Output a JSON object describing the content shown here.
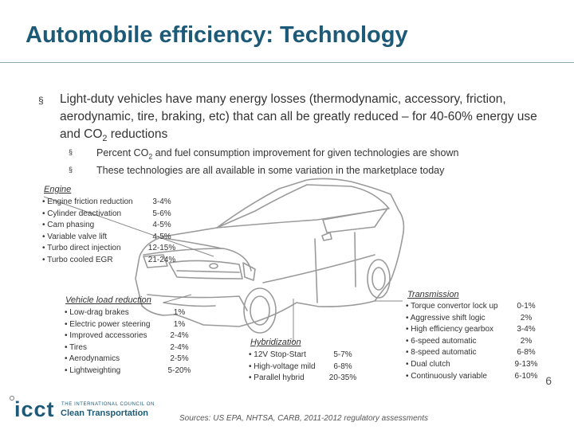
{
  "title": "Automobile efficiency: Technology",
  "bullet_main": {
    "mark": "§",
    "text": "Light-duty vehicles have many energy losses (thermodynamic, accessory, friction, aerodynamic, tire, braking, etc) that can all be greatly reduced – for 40-60% energy use and CO2 reductions"
  },
  "sub_bullets": [
    {
      "mark": "§",
      "text": "Percent CO2 and fuel consumption improvement for given technologies are shown"
    },
    {
      "mark": "§",
      "text": "These technologies are all available in some variation in the marketplace today"
    }
  ],
  "engine": {
    "title": "Engine",
    "items": [
      {
        "label": "• Engine friction reduction",
        "value": "3-4%"
      },
      {
        "label": "• Cylinder deactivation",
        "value": "5-6%"
      },
      {
        "label": "• Cam phasing",
        "value": "4-5%"
      },
      {
        "label": "• Variable valve lift",
        "value": "4-5%"
      },
      {
        "label": "• Turbo direct injection",
        "value": "12-15%"
      },
      {
        "label": "• Turbo cooled EGR",
        "value": "21-24%"
      }
    ]
  },
  "vehicle_load": {
    "title": "Vehicle load reduction",
    "items": [
      {
        "label": "• Low-drag brakes",
        "value": "1%"
      },
      {
        "label": "• Electric power steering",
        "value": "1%"
      },
      {
        "label": "• Improved accessories",
        "value": "2-4%"
      },
      {
        "label": "• Tires",
        "value": "2-4%"
      },
      {
        "label": "• Aerodynamics",
        "value": "2-5%"
      },
      {
        "label": "• Lightweighting",
        "value": "5-20%"
      }
    ]
  },
  "hybridization": {
    "title": "Hybridization",
    "items": [
      {
        "label": "• 12V Stop-Start",
        "value": "5-7%"
      },
      {
        "label": "• High-voltage mild",
        "value": "6-8%"
      },
      {
        "label": "• Parallel hybrid",
        "value": "20-35%"
      }
    ]
  },
  "transmission": {
    "title": "Transmission",
    "items": [
      {
        "label": "• Torque convertor lock up",
        "value": "0-1%"
      },
      {
        "label": "• Aggressive shift logic",
        "value": "2%"
      },
      {
        "label": "• High efficiency gearbox",
        "value": "3-4%"
      },
      {
        "label": "• 6-speed automatic",
        "value": "2%"
      },
      {
        "label": "• 8-speed automatic",
        "value": "6-8%"
      },
      {
        "label": "• Dual clutch",
        "value": "9-13%"
      },
      {
        "label": "• Continuously variable",
        "value": "6-10%"
      }
    ]
  },
  "page_number": "6",
  "sources": "Sources: US EPA, NHTSA, CARB, 2011-2012 regulatory assessments",
  "logo": {
    "abbrev": "icct",
    "small_text": "THE INTERNATIONAL COUNCIL ON",
    "name": "Clean Transportation"
  },
  "colors": {
    "title": "#1c5a77",
    "text": "#333333",
    "car_outline": "#9a9a9a"
  }
}
